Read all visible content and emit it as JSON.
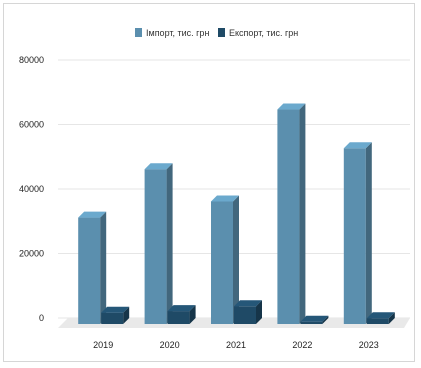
{
  "chart_data": {
    "type": "bar",
    "categories": [
      "2019",
      "2020",
      "2021",
      "2022",
      "2023"
    ],
    "series": [
      {
        "name": "Імпорт, тис. грн",
        "values": [
          33000,
          48000,
          38000,
          66500,
          54500
        ],
        "color": "#5b8fae"
      },
      {
        "name": "Експорт, тис. грн",
        "values": [
          3500,
          4000,
          5500,
          700,
          1800
        ],
        "color": "#1f4a66"
      }
    ],
    "y_ticks": [
      "0",
      "20000",
      "40000",
      "60000",
      "80000"
    ],
    "ylim": [
      0,
      80000
    ],
    "grid": true,
    "legend_position": "top-center",
    "style_3d": true
  }
}
